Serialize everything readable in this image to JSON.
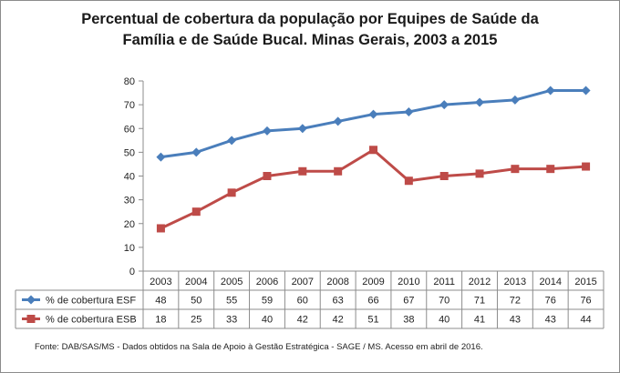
{
  "chart_data": {
    "type": "line",
    "title_line1": "Percentual de cobertura da população por Equipes de Saúde da",
    "title_line2": "Família e de Saúde Bucal. Minas Gerais, 2003 a 2015",
    "categories": [
      "2003",
      "2004",
      "2005",
      "2006",
      "2007",
      "2008",
      "2009",
      "2010",
      "2011",
      "2012",
      "2013",
      "2014",
      "2015"
    ],
    "ylim": [
      0,
      80
    ],
    "yticks": [
      0,
      10,
      20,
      30,
      40,
      50,
      60,
      70,
      80
    ],
    "grid": false,
    "legend": "data-table",
    "series": [
      {
        "name": "% de cobertura ESF",
        "color": "#4a7ebb",
        "marker": "diamond",
        "values": [
          48,
          50,
          55,
          59,
          60,
          63,
          66,
          67,
          70,
          71,
          72,
          76,
          76
        ]
      },
      {
        "name": "% de cobertura ESB",
        "color": "#be4b48",
        "marker": "square",
        "values": [
          18,
          25,
          33,
          40,
          42,
          42,
          51,
          38,
          40,
          41,
          43,
          43,
          44
        ]
      }
    ]
  },
  "footnote": "Fonte:  DAB/SAS/MS - Dados obtidos na Sala de Apoio à Gestão Estratégica - SAGE / MS. Acesso em  abril de  2016."
}
